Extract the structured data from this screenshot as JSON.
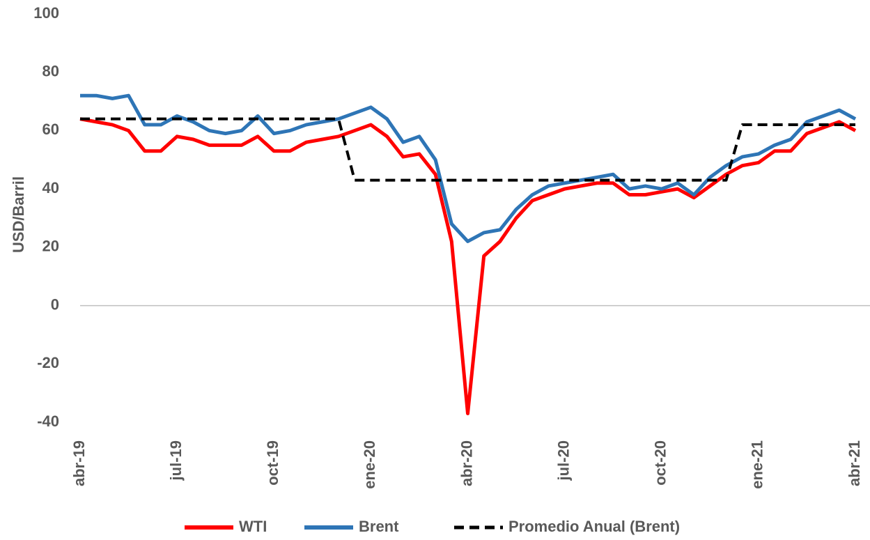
{
  "chart_data": {
    "type": "line",
    "y_label": "USD/Barril",
    "categories": [
      "abr-19",
      null,
      null,
      null,
      null,
      null,
      "jul-19",
      null,
      null,
      null,
      null,
      null,
      "oct-19",
      null,
      null,
      null,
      null,
      null,
      "ene-20",
      null,
      null,
      null,
      null,
      null,
      "abr-20",
      null,
      null,
      null,
      null,
      null,
      "jul-20",
      null,
      null,
      null,
      null,
      null,
      "oct-20",
      null,
      null,
      null,
      null,
      null,
      "ene-21",
      null,
      null,
      null,
      null,
      null,
      "abr-21"
    ],
    "series": [
      {
        "name": "WTI",
        "color": "#ff0000",
        "dash": false,
        "values": [
          64,
          63,
          62,
          60,
          53,
          53,
          58,
          57,
          55,
          55,
          55,
          58,
          53,
          53,
          56,
          57,
          58,
          60,
          62,
          58,
          51,
          52,
          45,
          22,
          -37,
          17,
          22,
          30,
          36,
          38,
          40,
          41,
          42,
          42,
          38,
          38,
          39,
          40,
          37,
          41,
          45,
          48,
          49,
          53,
          53,
          59,
          61,
          63,
          60
        ]
      },
      {
        "name": "Brent",
        "color": "#2e75b6",
        "dash": false,
        "values": [
          72,
          72,
          71,
          72,
          62,
          62,
          65,
          63,
          60,
          59,
          60,
          65,
          59,
          60,
          62,
          63,
          64,
          66,
          68,
          64,
          56,
          58,
          50,
          28,
          22,
          25,
          26,
          33,
          38,
          41,
          42,
          43,
          44,
          45,
          40,
          41,
          40,
          42,
          38,
          44,
          48,
          51,
          52,
          55,
          57,
          63,
          65,
          67,
          64
        ]
      },
      {
        "name": "Promedio Anual (Brent)",
        "color": "#000000",
        "dash": true,
        "values": [
          64,
          64,
          64,
          64,
          64,
          64,
          64,
          64,
          64,
          64,
          64,
          64,
          64,
          64,
          64,
          64,
          64,
          43,
          43,
          43,
          43,
          43,
          43,
          43,
          43,
          43,
          43,
          43,
          43,
          43,
          43,
          43,
          43,
          43,
          43,
          43,
          43,
          43,
          43,
          43,
          43,
          62,
          62,
          62,
          62,
          62,
          62,
          62,
          62
        ]
      }
    ],
    "ylim": [
      -40,
      100
    ],
    "yticks": [
      -40,
      -20,
      0,
      20,
      40,
      60,
      80,
      100
    ],
    "grid": false,
    "legend": "bottom"
  }
}
